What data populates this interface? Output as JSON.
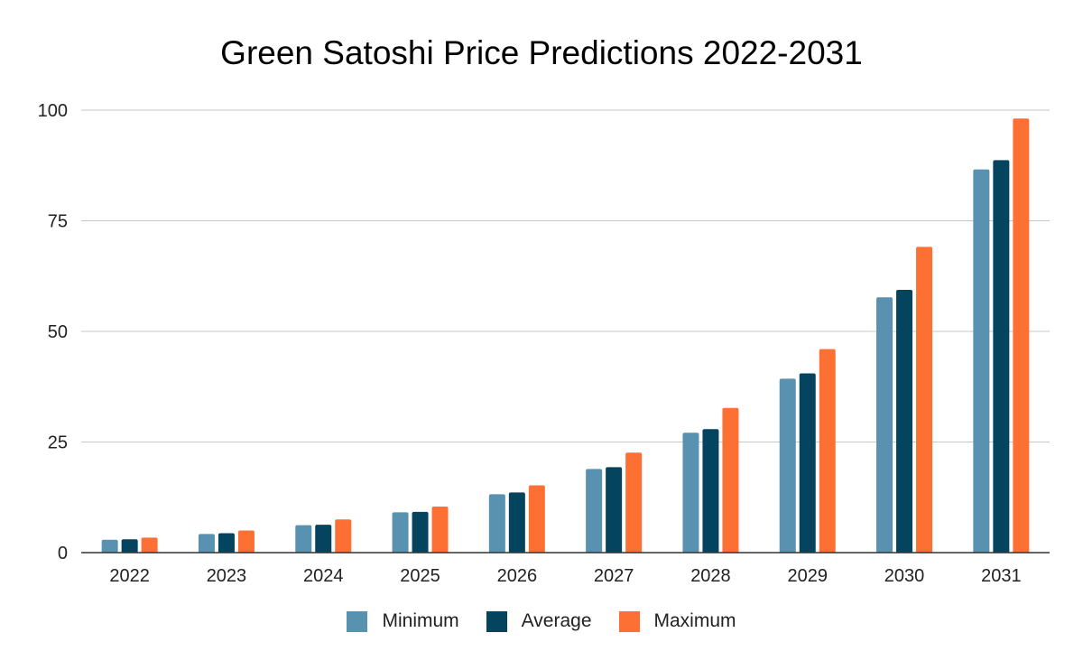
{
  "chart_data": {
    "type": "bar",
    "title": "Green Satoshi Price Predictions 2022-2031",
    "xlabel": "",
    "ylabel": "",
    "ylim": [
      0,
      100
    ],
    "yticks": [
      0,
      25,
      50,
      75,
      100
    ],
    "grid": true,
    "legend_position": "bottom",
    "categories": [
      "2022",
      "2023",
      "2024",
      "2025",
      "2026",
      "2027",
      "2028",
      "2029",
      "2030",
      "2031"
    ],
    "series": [
      {
        "name": "Minimum",
        "color": "#5892b0",
        "values": [
          2.9,
          4.2,
          6.2,
          9.1,
          13.2,
          18.9,
          27.1,
          39.3,
          57.7,
          86.6
        ]
      },
      {
        "name": "Average",
        "color": "#05445f",
        "values": [
          3.0,
          4.4,
          6.3,
          9.2,
          13.6,
          19.3,
          27.9,
          40.5,
          59.4,
          88.7
        ]
      },
      {
        "name": "Maximum",
        "color": "#fd7033",
        "values": [
          3.4,
          5.0,
          7.5,
          10.4,
          15.2,
          22.6,
          32.7,
          46.0,
          69.1,
          98.1
        ]
      }
    ]
  }
}
